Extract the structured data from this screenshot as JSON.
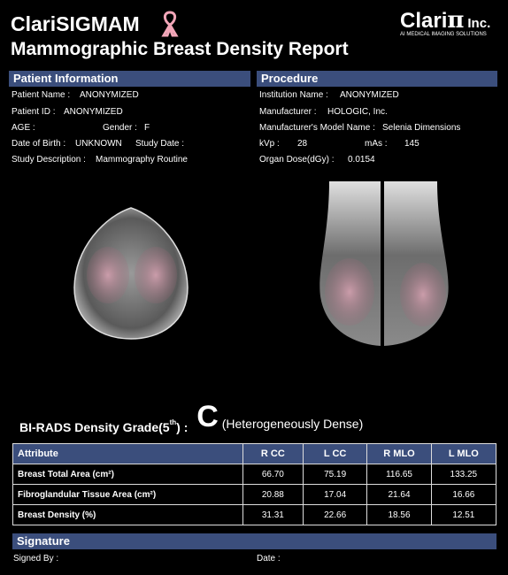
{
  "header": {
    "brand": "ClariSIGMAM",
    "title": "Mammographic Breast Density Report",
    "logo": "Clari",
    "logo_symbol": "π",
    "logo_suffix": "Inc.",
    "logo_tagline": "AI MEDICAL IMAGING SOLUTIONS"
  },
  "patient_information": {
    "heading": "Patient Information",
    "patient_name": {
      "label": "Patient Name :",
      "value": "ANONYMIZED"
    },
    "patient_id": {
      "label": "Patient ID :",
      "value": "ANONYMIZED"
    },
    "age": {
      "label": "AGE :"
    },
    "gender": {
      "label": "Gender :",
      "value": "F"
    },
    "date_of_birth": {
      "label": "Date of Birth :",
      "value": "UNKNOWN"
    },
    "study_date": {
      "label": "Study Date :"
    },
    "study_description": {
      "label": "Study Description :",
      "value": "Mammography Routine"
    }
  },
  "procedure": {
    "heading": "Procedure",
    "institution_name": {
      "label": "Institution Name :",
      "value": "ANONYMIZED"
    },
    "manufacturer": {
      "label": "Manufacturer :",
      "value": "HOLOGIC, Inc."
    },
    "model_name": {
      "label": "Manufacturer's Model Name :",
      "value": "Selenia Dimensions"
    },
    "kvp": {
      "label": "kVp :",
      "value": "28"
    },
    "mas": {
      "label": "mAs :",
      "value": "145"
    },
    "organ_dose": {
      "label": "Organ Dose(dGy) :",
      "value": "0.0154"
    }
  },
  "density": {
    "label": "BI-RADS Density Grade(5",
    "superscript": "th",
    "label_end": ") :",
    "grade": "C",
    "description": "(Heterogeneously Dense)"
  },
  "table": {
    "columns": [
      "Attribute",
      "R CC",
      "L CC",
      "R MLO",
      "L MLO"
    ],
    "rows": [
      [
        "Breast Total Area (cm²)",
        "66.70",
        "75.19",
        "116.65",
        "133.25"
      ],
      [
        "Fibroglandular Tissue Area (cm²)",
        "20.88",
        "17.04",
        "21.64",
        "16.66"
      ],
      [
        "Breast Density (%)",
        "31.31",
        "22.66",
        "18.56",
        "12.51"
      ]
    ]
  },
  "signature": {
    "heading": "Signature",
    "signed_by": "Signed By :",
    "date": "Date :"
  }
}
